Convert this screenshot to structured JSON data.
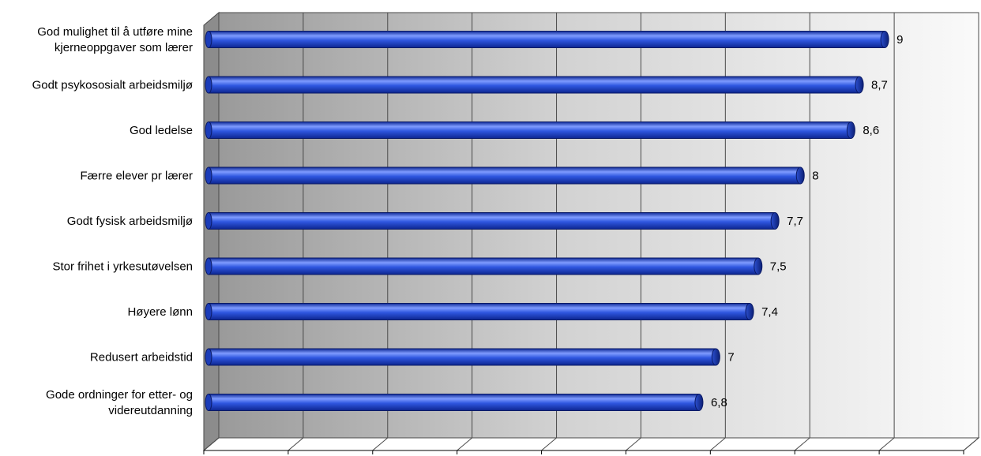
{
  "chart_data": {
    "type": "bar",
    "orientation": "horizontal",
    "style": "3d-cylinder",
    "title": "",
    "xlabel": "",
    "ylabel": "",
    "xlim": [
      1,
      10
    ],
    "x_ticks": [
      "1",
      "2",
      "3",
      "4",
      "5",
      "6",
      "7",
      "8",
      "9",
      "10"
    ],
    "grid": true,
    "legend": "none",
    "categories": [
      [
        "God mulighet til å utføre mine",
        "kjerneoppgaver som lærer"
      ],
      [
        "Godt psykososialt arbeidsmiljø"
      ],
      [
        "God ledelse"
      ],
      [
        "Færre elever pr lærer"
      ],
      [
        "Godt fysisk arbeidsmiljø"
      ],
      [
        "Stor frihet i yrkesutøvelsen"
      ],
      [
        "Høyere lønn"
      ],
      [
        "Redusert arbeidstid"
      ],
      [
        "Gode ordninger for etter- og",
        "videreutdanning"
      ]
    ],
    "values": [
      9,
      8.7,
      8.6,
      8,
      7.7,
      7.5,
      7.4,
      7,
      6.8
    ],
    "value_labels": [
      "9",
      "8,7",
      "8,6",
      "8",
      "7,7",
      "7,5",
      "7,4",
      "7",
      "6,8"
    ],
    "colors": {
      "bar": "#2f57e0",
      "bar_highlight": "#7f9cff",
      "bar_dark": "#0d2690",
      "wall_dark": "#8c8c8c",
      "wall_light": "#f7f7f7",
      "grid": "#4a4a4a"
    }
  }
}
